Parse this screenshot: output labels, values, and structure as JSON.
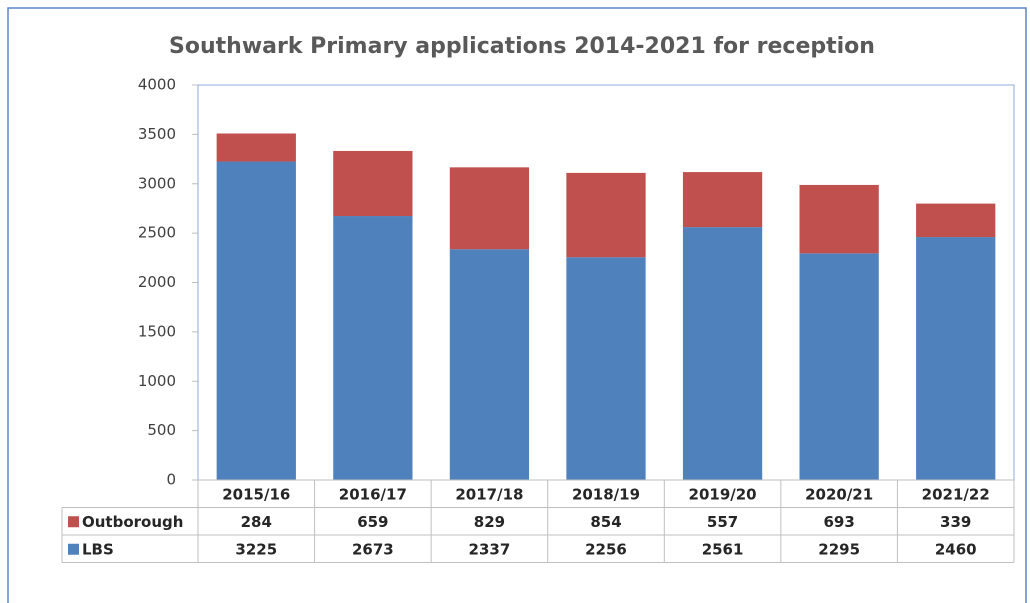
{
  "chart_data": {
    "type": "stacked-bar",
    "title": "Southwark Primary applications 2014-2021 for reception",
    "categories": [
      "2015/16",
      "2016/17",
      "2017/18",
      "2018/19",
      "2019/20",
      "2020/21",
      "2021/22"
    ],
    "series": [
      {
        "name": "LBS",
        "color": "#4f81bd",
        "values": [
          3225,
          2673,
          2337,
          2256,
          2561,
          2295,
          2460
        ]
      },
      {
        "name": "Outborough",
        "color": "#c0504d",
        "values": [
          284,
          659,
          829,
          854,
          557,
          693,
          339
        ]
      }
    ],
    "ylim": [
      0,
      4000
    ],
    "yticks": [
      0,
      500,
      1000,
      1500,
      2000,
      2500,
      3000,
      3500,
      4000
    ],
    "grid": false,
    "data_table": true
  }
}
